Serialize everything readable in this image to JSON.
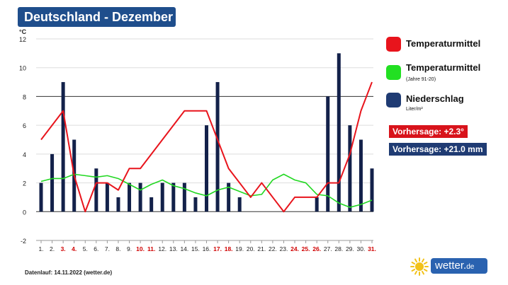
{
  "header": {
    "title": "Deutschland - Dezember"
  },
  "legend": {
    "items": [
      {
        "label": "Temperaturmittel",
        "sub": "",
        "color": "#e8141c"
      },
      {
        "label": "Temperaturmittel",
        "sub": "(Jahre 91-20)",
        "color": "#22e022"
      },
      {
        "label": "Niederschlag",
        "sub": "Liter/m²",
        "color": "#1f3b73"
      }
    ]
  },
  "forecast": {
    "temperature": {
      "text": "Vorhersage: +2.3°",
      "color": "#d8131b"
    },
    "precipitation": {
      "text": "Vorhersage: +21.0 mm",
      "color": "#1f3b73"
    }
  },
  "footer": {
    "note": "Datenlauf: 14.11.2022 (wetter.de)"
  },
  "logo": {
    "text": "wetter",
    "dot": ".",
    "suffix": "de",
    "sun_color": "#f2c21b",
    "box_color": "#2a62b0"
  },
  "chart_data": {
    "type": "bar",
    "ylabel": "°C",
    "ylim": [
      -2,
      12
    ],
    "yticks": [
      -2,
      0,
      2,
      4,
      6,
      8,
      10,
      12
    ],
    "categories": [
      "1.",
      "2.",
      "3.",
      "4.",
      "5.",
      "6.",
      "7.",
      "8.",
      "9.",
      "10.",
      "11.",
      "12.",
      "13.",
      "14.",
      "15.",
      "16.",
      "17.",
      "18.",
      "19.",
      "20.",
      "21.",
      "22.",
      "23.",
      "24.",
      "25.",
      "26.",
      "27.",
      "28.",
      "29.",
      "30.",
      "31."
    ],
    "highlight_days": [
      3,
      4,
      10,
      11,
      17,
      18,
      24,
      25,
      26,
      31
    ],
    "highlight_color": "#d00000",
    "series": [
      {
        "name": "Niederschlag",
        "kind": "bar",
        "color": "#13214a",
        "values": [
          2,
          4,
          9,
          5,
          0,
          3,
          2,
          1,
          2,
          2,
          1,
          2,
          2,
          2,
          1,
          6,
          9,
          2,
          1,
          0,
          0,
          0,
          0,
          0,
          0,
          1,
          8,
          11,
          6,
          5,
          3
        ]
      },
      {
        "name": "Temperaturmittel",
        "kind": "line",
        "color": "#e8141c",
        "values": [
          5,
          6,
          7,
          2.5,
          0,
          2,
          2,
          1.5,
          3,
          3,
          4,
          5,
          6,
          7,
          7,
          7,
          5,
          3,
          2,
          1,
          2,
          1,
          0,
          1,
          1,
          1,
          2,
          2,
          4,
          7,
          9
        ]
      },
      {
        "name": "Temperaturmittel (Jahre 91-20)",
        "kind": "line",
        "color": "#22d822",
        "values": [
          2.1,
          2.3,
          2.3,
          2.6,
          2.5,
          2.4,
          2.5,
          2.3,
          1.9,
          1.5,
          1.9,
          2.2,
          1.8,
          1.6,
          1.3,
          1.1,
          1.5,
          1.7,
          1.4,
          1.1,
          1.2,
          2.2,
          2.6,
          2.2,
          2.0,
          1.2,
          1.1,
          0.6,
          0.3,
          0.5,
          0.8
        ]
      }
    ],
    "grid": true
  }
}
